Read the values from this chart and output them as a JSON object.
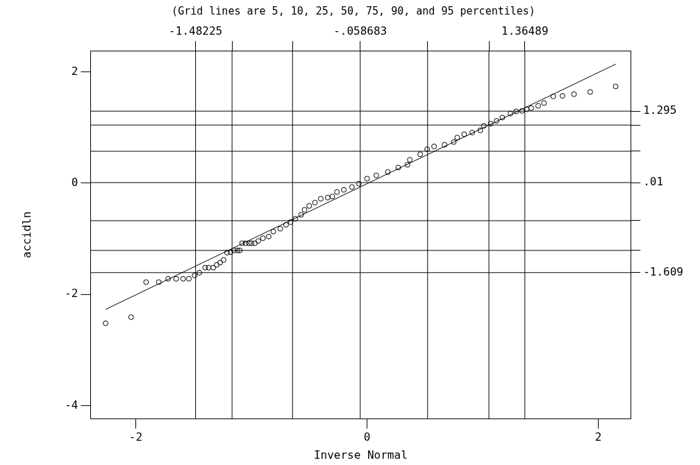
{
  "chart_data": {
    "type": "scatter",
    "title": "(Grid lines are 5, 10, 25, 50, 75, 90, and 95 percentiles)",
    "xlabel": "Inverse Normal",
    "ylabel": "accidln",
    "marker": "circle",
    "xlim": [
      -2.39,
      2.28
    ],
    "xticks": [
      -2,
      0,
      2
    ],
    "ylim": [
      -4.24,
      2.38
    ],
    "yticks": [
      -4,
      -2,
      0,
      2
    ],
    "x2lim": [
      -2.39,
      2.28
    ],
    "x2ticks": [
      {
        "value": -1.48225,
        "label": "-1.48225"
      },
      {
        "value": -1.167,
        "label": null
      },
      {
        "value": -0.644,
        "label": null
      },
      {
        "value": -0.058683,
        "label": "-.058683"
      },
      {
        "value": 0.524,
        "label": null
      },
      {
        "value": 1.054,
        "label": null
      },
      {
        "value": 1.36489,
        "label": "1.36489"
      }
    ],
    "y2lim": [
      -4.24,
      2.38
    ],
    "y2ticks": [
      {
        "value": 1.295,
        "label": "1.295"
      },
      {
        "value": 1.045,
        "label": null
      },
      {
        "value": 0.573,
        "label": null
      },
      {
        "value": 0.01,
        "label": ".01"
      },
      {
        "value": -0.675,
        "label": null
      },
      {
        "value": -1.21,
        "label": null
      },
      {
        "value": -1.609,
        "label": "-1.609"
      }
    ],
    "ref_lines": [
      {
        "axis": "x",
        "value": -1.48225
      },
      {
        "axis": "x",
        "value": -1.167
      },
      {
        "axis": "x",
        "value": -0.644
      },
      {
        "axis": "x",
        "value": -0.058683
      },
      {
        "axis": "x",
        "value": 0.524
      },
      {
        "axis": "x",
        "value": 1.054
      },
      {
        "axis": "x",
        "value": 1.36489
      },
      {
        "axis": "y",
        "value": 1.295
      },
      {
        "axis": "y",
        "value": 1.045
      },
      {
        "axis": "y",
        "value": 0.573
      },
      {
        "axis": "y",
        "value": 0.01
      },
      {
        "axis": "y",
        "value": -0.675
      },
      {
        "axis": "y",
        "value": -1.21
      },
      {
        "axis": "y",
        "value": -1.609
      }
    ],
    "series": [
      {
        "color": "#000000",
        "x": [
          -2.26,
          -2.04,
          -1.91,
          -1.8,
          -1.72,
          -1.65,
          -1.59,
          -1.54,
          -1.49,
          -1.45,
          -1.4,
          -1.37,
          -1.33,
          -1.3,
          -1.27,
          -1.24,
          -1.21,
          -1.18,
          -1.15,
          -1.12,
          -1.1,
          -1.08,
          -1.05,
          -1.02,
          -1.0,
          -0.97,
          -0.94,
          -0.9,
          -0.85,
          -0.81,
          -0.75,
          -0.7,
          -0.66,
          -0.62,
          -0.57,
          -0.54,
          -0.5,
          -0.45,
          -0.4,
          -0.34,
          -0.3,
          -0.26,
          -0.2,
          -0.13,
          -0.07,
          0.0,
          0.08,
          0.18,
          0.27,
          0.35,
          0.37,
          0.46,
          0.52,
          0.58,
          0.67,
          0.75,
          0.78,
          0.84,
          0.91,
          0.98,
          1.01,
          1.07,
          1.12,
          1.17,
          1.24,
          1.29,
          1.34,
          1.38,
          1.42,
          1.48,
          1.53,
          1.61,
          1.69,
          1.79,
          1.93,
          2.15
        ],
        "values": [
          -2.52,
          -2.41,
          -1.78,
          -1.78,
          -1.72,
          -1.72,
          -1.72,
          -1.72,
          -1.66,
          -1.61,
          -1.52,
          -1.52,
          -1.52,
          -1.47,
          -1.43,
          -1.38,
          -1.25,
          -1.24,
          -1.21,
          -1.21,
          -1.21,
          -1.08,
          -1.08,
          -1.08,
          -1.08,
          -1.08,
          -1.04,
          -0.99,
          -0.96,
          -0.87,
          -0.82,
          -0.75,
          -0.7,
          -0.64,
          -0.57,
          -0.48,
          -0.41,
          -0.35,
          -0.28,
          -0.26,
          -0.24,
          -0.16,
          -0.12,
          -0.07,
          -0.01,
          0.08,
          0.14,
          0.2,
          0.28,
          0.33,
          0.42,
          0.52,
          0.61,
          0.66,
          0.69,
          0.74,
          0.82,
          0.88,
          0.91,
          0.95,
          1.03,
          1.07,
          1.12,
          1.18,
          1.25,
          1.29,
          1.3,
          1.33,
          1.35,
          1.39,
          1.44,
          1.56,
          1.57,
          1.6,
          1.64,
          1.74
        ]
      },
      {
        "type": "line",
        "color": "#000000",
        "marker": "none",
        "x": [
          -2.26,
          2.15
        ],
        "values": [
          -2.27,
          2.14
        ]
      }
    ]
  }
}
